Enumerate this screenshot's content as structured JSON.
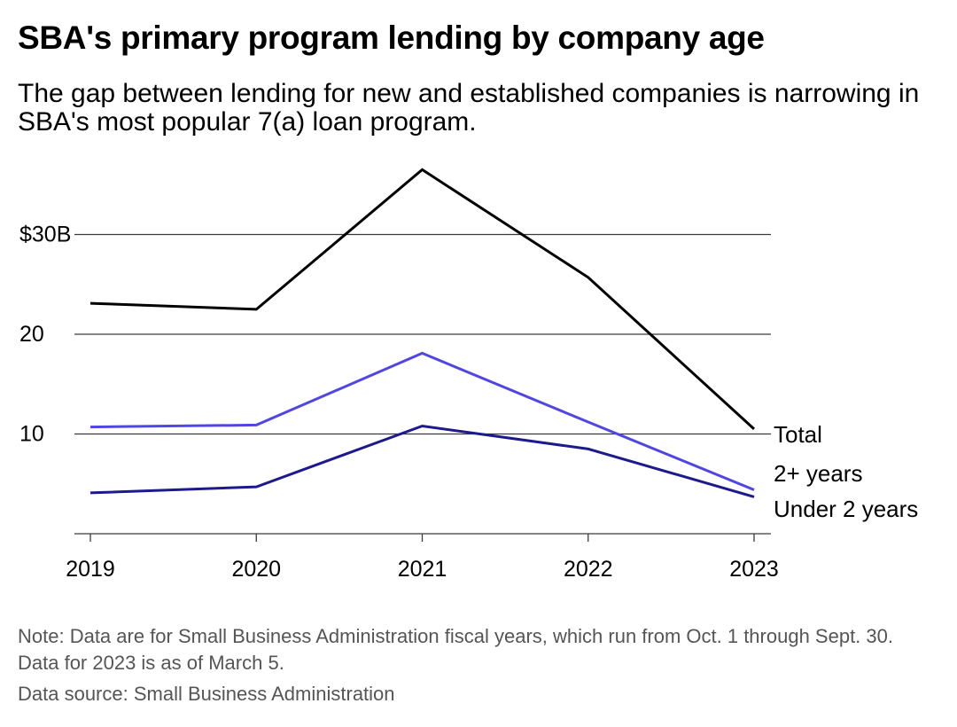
{
  "title": "SBA's primary program lending by company age",
  "subtitle": "The gap between lending for new and established companies is narrowing in SBA's most popular 7(a) loan program.",
  "note": "Note: Data are for Small Business Administration fiscal years, which run from Oct. 1 through Sept. 30. Data for 2023 is as of March 5.",
  "source": "Data source: Small Business Administration",
  "chart_data": {
    "type": "line",
    "x": [
      "2019",
      "2020",
      "2021",
      "2022",
      "2023"
    ],
    "y_ticks": [
      {
        "value": 10,
        "label": "10"
      },
      {
        "value": 20,
        "label": "20"
      },
      {
        "value": 30,
        "label": "$30B"
      }
    ],
    "ylim": [
      0,
      37
    ],
    "grid": true,
    "legend": "direct labels at line ends (right)",
    "series": [
      {
        "name": "Total",
        "color": "#000000",
        "values": [
          23.1,
          22.5,
          36.5,
          25.7,
          10.5
        ]
      },
      {
        "name": "2+ years",
        "color": "#5046e4",
        "values": [
          10.7,
          10.9,
          18.1,
          11.2,
          4.4
        ]
      },
      {
        "name": "Under 2 years",
        "color": "#1c1a8c",
        "values": [
          4.1,
          4.7,
          10.8,
          8.5,
          3.7
        ]
      }
    ]
  }
}
